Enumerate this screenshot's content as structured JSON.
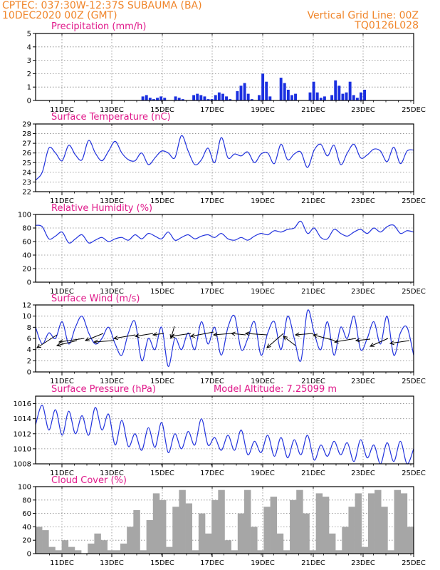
{
  "header": {
    "line1": "CPTEC:   037:30W-12:37S   SUBAUMA (BA)",
    "line2": "10DEC2020 00Z (GMT)",
    "right1": "Vertical Grid Line: 00Z",
    "right2": "TQ0126L028"
  },
  "colors": {
    "header": "#f0852a",
    "panel_title": "#e0198a",
    "line": "#2233dd",
    "bar": "#1a2fe0",
    "cloud": "#a6a6a6",
    "grid": "#888888"
  },
  "x_tick_labels": [
    "11DEC",
    "13DEC",
    "15DEC",
    "17DEC",
    "19DEC",
    "21DEC",
    "23DEC",
    "25DEC"
  ],
  "chart_data": [
    {
      "type": "bar",
      "title": "Precipitation (mm/h)",
      "ylim": [
        0,
        5
      ],
      "yticks": [
        "0",
        "1",
        "2",
        "3",
        "4",
        "5"
      ],
      "x": "hours since 10DEC2020 00Z (3-hourly)",
      "values": [
        0,
        0,
        0,
        0,
        0,
        0,
        0,
        0,
        0,
        0,
        0,
        0,
        0,
        0,
        0,
        0,
        0,
        0,
        0,
        0,
        0,
        0,
        0,
        0,
        0,
        0,
        0,
        0,
        0,
        0.3,
        0.4,
        0.2,
        0.1,
        0.2,
        0.3,
        0.2,
        0,
        0,
        0.3,
        0.2,
        0.1,
        0,
        0,
        0.4,
        0.5,
        0.4,
        0.3,
        0.1,
        0.1,
        0.4,
        0.6,
        0.5,
        0.3,
        0.1,
        0,
        0.7,
        1.1,
        1.3,
        0.5,
        0.1,
        0,
        0.4,
        2.0,
        1.4,
        0.3,
        0,
        0,
        1.7,
        1.3,
        0.8,
        0.4,
        0.5,
        0,
        0,
        0,
        0.6,
        1.4,
        0.6,
        0.2,
        0.3,
        0,
        0.4,
        1.5,
        1.1,
        0.5,
        0.6,
        1.4,
        0.4,
        0.2,
        0.6,
        0.8,
        0,
        0,
        0,
        0,
        0,
        0,
        0,
        0,
        0,
        0,
        0,
        0,
        0
      ]
    },
    {
      "type": "line",
      "title": "Surface Temperature (nC)",
      "ylim": [
        22,
        29
      ],
      "yticks": [
        "22",
        "23",
        "24",
        "25",
        "26",
        "27",
        "28",
        "29"
      ],
      "values": [
        23.2,
        24.0,
        26.5,
        26.0,
        25.2,
        26.8,
        25.8,
        25.3,
        27.3,
        26.0,
        25.2,
        26.2,
        27.2,
        26.0,
        25.3,
        25.2,
        26.0,
        24.8,
        25.5,
        26.2,
        26.0,
        25.5,
        27.8,
        26.2,
        24.8,
        25.3,
        26.5,
        25.0,
        27.6,
        25.5,
        25.9,
        25.7,
        26.1,
        25.0,
        25.9,
        26.0,
        24.9,
        26.9,
        25.3,
        25.9,
        26.1,
        24.5,
        26.3,
        26.9,
        25.7,
        26.8,
        24.8,
        26.0,
        26.9,
        25.5,
        25.8,
        26.4,
        26.2,
        25.1,
        26.6,
        24.9,
        26.2,
        26.3
      ]
    },
    {
      "type": "line",
      "title": "Relative Humidity (%)",
      "ylim": [
        0,
        100
      ],
      "yticks": [
        "0",
        "20",
        "40",
        "60",
        "80",
        "100"
      ],
      "values": [
        84,
        82,
        64,
        68,
        74,
        58,
        64,
        70,
        58,
        62,
        66,
        60,
        64,
        66,
        62,
        70,
        64,
        72,
        68,
        64,
        74,
        62,
        66,
        70,
        64,
        68,
        70,
        66,
        72,
        64,
        62,
        66,
        62,
        68,
        72,
        70,
        76,
        74,
        78,
        80,
        90,
        72,
        80,
        66,
        64,
        78,
        72,
        68,
        74,
        78,
        72,
        80,
        74,
        82,
        84,
        72,
        76,
        74
      ]
    },
    {
      "type": "line",
      "title": "Surface Wind (m/s)",
      "ylim": [
        0,
        12
      ],
      "yticks": [
        "0",
        "2",
        "4",
        "6",
        "8",
        "10",
        "12"
      ],
      "values": [
        8,
        5,
        7,
        6,
        9,
        5,
        8,
        10,
        7,
        5,
        6,
        8,
        5,
        3,
        7,
        9,
        2,
        6,
        4,
        8,
        1,
        6,
        4,
        7,
        4,
        9,
        5,
        8,
        3,
        8,
        10,
        4,
        6,
        9,
        3,
        7,
        9,
        4,
        10,
        6,
        2,
        11,
        7,
        4,
        9,
        3,
        8,
        6,
        10,
        4,
        6,
        9,
        5,
        10,
        3,
        7,
        8,
        3
      ]
    },
    {
      "type": "line",
      "title": "Surface Pressure (hPa)",
      "subtitle": "Model Altitude: 7.25099  m",
      "ylim": [
        1008,
        1017
      ],
      "yticks": [
        "1008",
        "1010",
        "1012",
        "1014",
        "1016"
      ],
      "values": [
        1013.2,
        1015.8,
        1012.5,
        1015.2,
        1011.8,
        1015.0,
        1012.0,
        1014.4,
        1011.8,
        1015.5,
        1012.5,
        1014.6,
        1010.5,
        1013.8,
        1010.3,
        1012.0,
        1009.8,
        1012.8,
        1010.2,
        1013.5,
        1009.5,
        1012.0,
        1010.0,
        1012.3,
        1010.5,
        1014.0,
        1010.5,
        1011.5,
        1009.8,
        1011.8,
        1009.8,
        1012.5,
        1009.2,
        1011.0,
        1009.5,
        1011.8,
        1009.0,
        1011.5,
        1008.8,
        1011.2,
        1009.2,
        1011.8,
        1008.5,
        1010.5,
        1009.0,
        1011.0,
        1009.2,
        1010.8,
        1008.3,
        1011.2,
        1008.8,
        1010.5,
        1008.0,
        1010.8,
        1008.3,
        1011.0,
        1008.0,
        1010.0
      ]
    },
    {
      "type": "area",
      "title": "Cloud Cover (%)",
      "ylim": [
        0,
        100
      ],
      "yticks": [
        "0",
        "20",
        "40",
        "60",
        "80",
        "100"
      ],
      "values": [
        40,
        35,
        10,
        5,
        20,
        10,
        5,
        0,
        15,
        30,
        20,
        5,
        5,
        15,
        40,
        65,
        5,
        50,
        90,
        80,
        10,
        70,
        95,
        75,
        5,
        60,
        30,
        80,
        95,
        20,
        5,
        60,
        95,
        40,
        5,
        70,
        85,
        30,
        5,
        80,
        95,
        60,
        5,
        90,
        85,
        30,
        5,
        40,
        70,
        90,
        10,
        90,
        95,
        70,
        5,
        95,
        90,
        40
      ]
    }
  ]
}
